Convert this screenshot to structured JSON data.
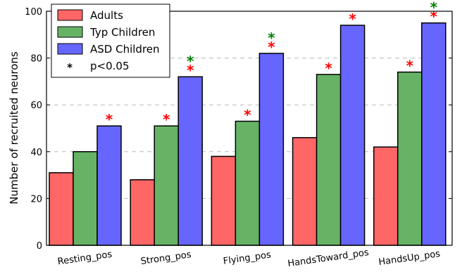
{
  "chart_data": {
    "type": "bar",
    "categories": [
      "Resting_pos",
      "Strong_pos",
      "Flying_pos",
      "HandsToward_pos",
      "HandsUp_pos"
    ],
    "series": [
      {
        "name": "Adults",
        "color": "#ff6666",
        "values": [
          31,
          28,
          38,
          46,
          42
        ]
      },
      {
        "name": "Typ Children",
        "color": "#66b366",
        "values": [
          40,
          51,
          53,
          73,
          74
        ]
      },
      {
        "name": "ASD Children",
        "color": "#6666ff",
        "values": [
          51,
          72,
          82,
          94,
          95
        ]
      }
    ],
    "significance_marker": "*",
    "legend_note": "p<0.05",
    "significance": [
      {
        "category": "Resting_pos",
        "series": "ASD Children",
        "colors": [
          "#ff0000"
        ]
      },
      {
        "category": "Strong_pos",
        "series": "Typ Children",
        "colors": [
          "#ff0000"
        ]
      },
      {
        "category": "Strong_pos",
        "series": "ASD Children",
        "colors": [
          "#ff0000",
          "#008000"
        ]
      },
      {
        "category": "Flying_pos",
        "series": "Typ Children",
        "colors": [
          "#ff0000"
        ]
      },
      {
        "category": "Flying_pos",
        "series": "ASD Children",
        "colors": [
          "#ff0000",
          "#008000"
        ]
      },
      {
        "category": "HandsToward_pos",
        "series": "Typ Children",
        "colors": [
          "#ff0000"
        ]
      },
      {
        "category": "HandsToward_pos",
        "series": "ASD Children",
        "colors": [
          "#ff0000"
        ]
      },
      {
        "category": "HandsUp_pos",
        "series": "Typ Children",
        "colors": [
          "#ff0000"
        ]
      },
      {
        "category": "HandsUp_pos",
        "series": "ASD Children",
        "colors": [
          "#ff0000",
          "#008000"
        ]
      }
    ],
    "ylabel": "Number of recruited neurons",
    "xlabel": "",
    "ylim": [
      0,
      100
    ],
    "yticks": [
      0,
      20,
      40,
      60,
      80,
      100
    ],
    "grid": "horizontal dashed",
    "legend_position": "top-left"
  }
}
